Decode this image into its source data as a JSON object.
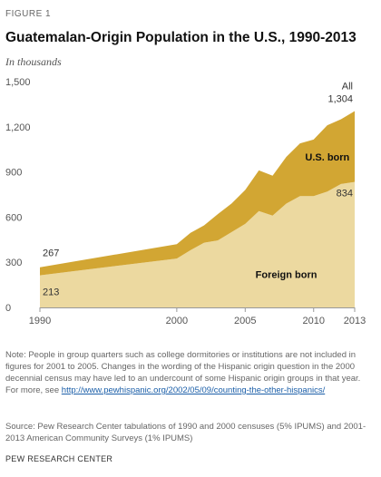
{
  "figure_label": "FIGURE 1",
  "title": "Guatemalan-Origin  Population in the U.S., 1990-2013",
  "subtitle": "In thousands",
  "colors": {
    "foreign_born": "#ecd9a0",
    "us_born": "#d2a633",
    "axis": "#999999",
    "link": "#1a5ea8"
  },
  "chart_data": {
    "type": "area",
    "stacked": true,
    "x": [
      1990,
      2000,
      2001,
      2002,
      2003,
      2004,
      2005,
      2006,
      2007,
      2008,
      2009,
      2010,
      2011,
      2012,
      2013
    ],
    "series": [
      {
        "name": "Foreign born",
        "values": [
          213,
          325,
          380,
          430,
          445,
          500,
          555,
          640,
          610,
          690,
          740,
          740,
          770,
          820,
          834
        ]
      },
      {
        "name": "U.S. born",
        "values": [
          54,
          95,
          115,
          115,
          175,
          190,
          225,
          270,
          265,
          310,
          350,
          375,
          440,
          430,
          470
        ]
      }
    ],
    "totals_label": "All",
    "annotations": [
      {
        "x": 1990,
        "value": 267,
        "text": "267"
      },
      {
        "x": 1990,
        "value": 213,
        "text": "213"
      },
      {
        "x": 2013,
        "value": 1304,
        "text": "1,304"
      },
      {
        "x": 2013,
        "value": 834,
        "text": "834"
      }
    ],
    "yticks": [
      0,
      300,
      600,
      900,
      1200,
      1500
    ],
    "ytick_labels": [
      "0",
      "300",
      "600",
      "900",
      "1,200",
      "1,500"
    ],
    "xticks": [
      1990,
      2000,
      2005,
      2010,
      2013
    ],
    "xtick_labels": [
      "1990",
      "2000",
      "2005",
      "2010",
      "2013"
    ],
    "ylim": [
      0,
      1500
    ],
    "xlim": [
      1990,
      2013
    ],
    "grid": false,
    "xlabel": "",
    "ylabel": ""
  },
  "note": {
    "text": "Note: People in group quarters such as college dormitories or institutions are not included in figures for 2001 to 2005.  Changes in the wording of the Hispanic origin question in the 2000 decennial census may have led to an undercount of some Hispanic origin groups in that year. For more, see ",
    "link": "http://www.pewhispanic.org/2002/05/09/counting-the-other-hispanics/"
  },
  "source": "Source: Pew Research Center tabulations of 1990 and 2000 censuses (5% IPUMS) and 2001-2013 American Community Surveys (1% IPUMS)",
  "brand": "PEW RESEARCH CENTER"
}
